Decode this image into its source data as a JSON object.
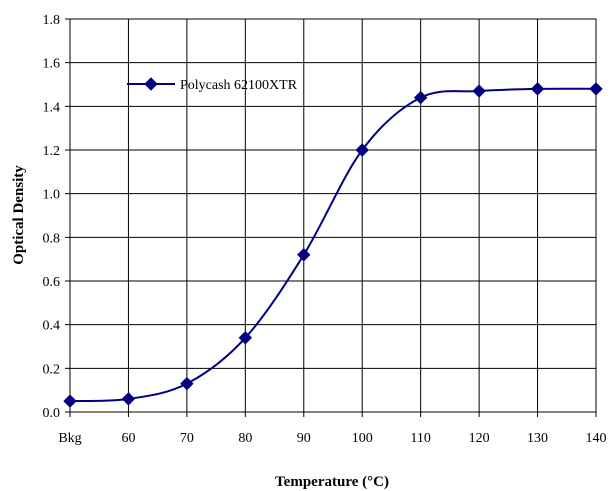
{
  "chart_data": {
    "type": "line",
    "title": "",
    "xlabel": "Temperature (°C)",
    "ylabel": "Optical Density",
    "categories": [
      "Bkg",
      "60",
      "70",
      "80",
      "90",
      "100",
      "110",
      "120",
      "130",
      "140"
    ],
    "series": [
      {
        "name": "Polycash 62100XTR",
        "values": [
          0.05,
          0.06,
          0.13,
          0.34,
          0.72,
          1.2,
          1.44,
          1.47,
          1.48,
          1.48
        ],
        "color": "#000080"
      }
    ],
    "yticks": [
      "0.0",
      "0.2",
      "0.4",
      "0.6",
      "0.8",
      "1.0",
      "1.2",
      "1.4",
      "1.6",
      "1.8"
    ],
    "ylim": [
      0,
      1.8
    ],
    "grid": true,
    "legend": "top-left, inside plot",
    "line_color": "#000080",
    "marker": "diamond",
    "smooth": true
  }
}
